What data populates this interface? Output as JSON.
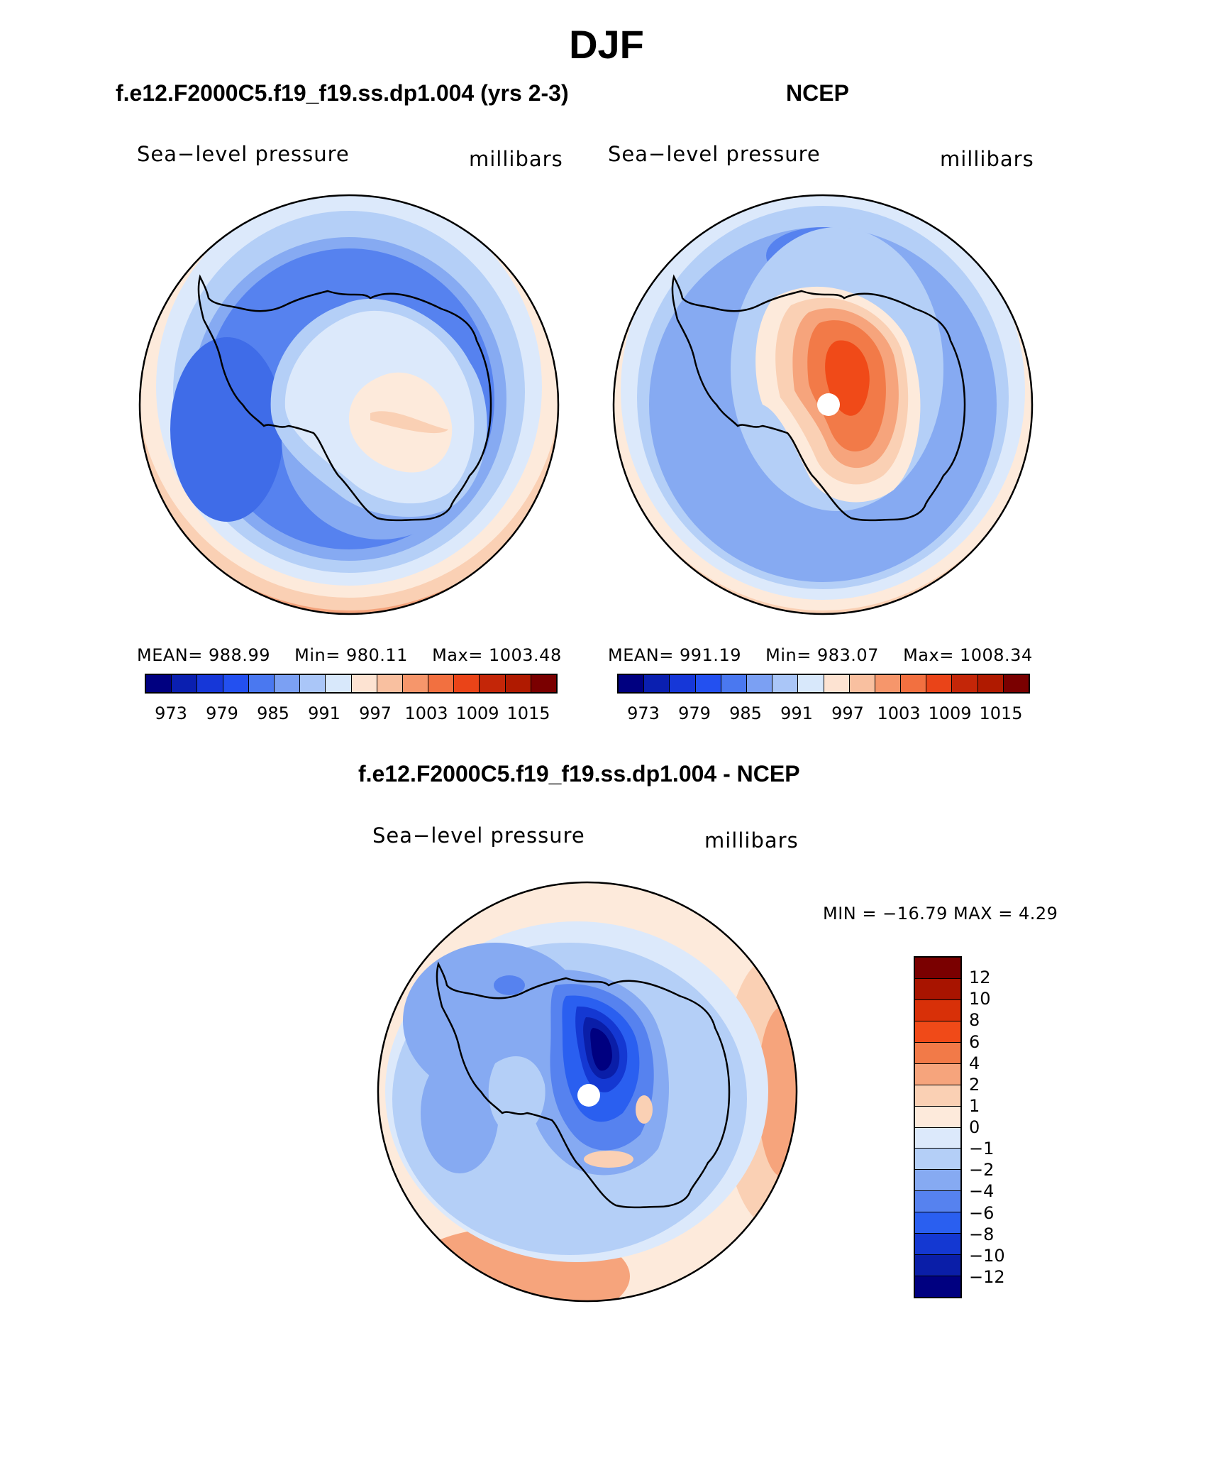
{
  "figure": {
    "title": "DJF",
    "field_label": "Sea−level pressure",
    "units_label": "millibars"
  },
  "panels": [
    {
      "title": "f.e12.F2000C5.f19_f19.ss.dp1.004 (yrs 2-3)",
      "stats": {
        "mean_label": "MEAN=",
        "mean": "988.99",
        "min_label": "Min=",
        "min": "980.11",
        "max_label": "Max=",
        "max": "1003.48"
      }
    },
    {
      "title": "NCEP",
      "stats": {
        "mean_label": "MEAN=",
        "mean": "991.19",
        "min_label": "Min=",
        "min": "983.07",
        "max_label": "Max=",
        "max": "1008.34"
      }
    }
  ],
  "difference_panel": {
    "title": "f.e12.F2000C5.f19_f19.ss.dp1.004 - NCEP",
    "minmax_text": "MIN = −16.79 MAX =    4.29"
  },
  "colorbar_abs": {
    "colors": [
      "#000080",
      "#0a1fb0",
      "#1637d8",
      "#2350f0",
      "#4a78f0",
      "#7ba0f3",
      "#aac6f8",
      "#d8e8fb",
      "#fde3d2",
      "#f9c0a0",
      "#f6966b",
      "#f27040",
      "#ea4418",
      "#c42608",
      "#b01a00",
      "#7a0000"
    ],
    "tick_labels": [
      "973",
      "979",
      "985",
      "991",
      "997",
      "1003",
      "1009",
      "1015"
    ]
  },
  "colorbar_diff": {
    "colors_top_to_bottom": [
      "#7a0000",
      "#a81400",
      "#d83008",
      "#f04a18",
      "#f27a48",
      "#f6a47c",
      "#fad0b4",
      "#fdeadb",
      "#dce9fb",
      "#b4cff7",
      "#86aaf2",
      "#5682ef",
      "#2a5ff0",
      "#1438d2",
      "#0a1ea8",
      "#000080"
    ],
    "labels_top_to_bottom": [
      "12",
      "10",
      "8",
      "6",
      "4",
      "2",
      "1",
      "0",
      "−1",
      "−2",
      "−4",
      "−6",
      "−8",
      "−10",
      "−12"
    ]
  },
  "chart_data": [
    {
      "type": "map",
      "projection": "polar stereographic, south pole",
      "title": "f.e12.F2000C5.f19_f19.ss.dp1.004 (yrs 2-3)",
      "variable": "Sea-level pressure",
      "units": "millibars",
      "mean": 988.99,
      "min": 980.11,
      "max": 1003.48,
      "contour_levels": [
        973,
        976,
        979,
        982,
        985,
        988,
        991,
        994,
        997,
        1000,
        1003,
        1006,
        1009,
        1012,
        1015
      ]
    },
    {
      "type": "map",
      "projection": "polar stereographic, south pole",
      "title": "NCEP",
      "variable": "Sea-level pressure",
      "units": "millibars",
      "mean": 991.19,
      "min": 983.07,
      "max": 1008.34,
      "contour_levels": [
        973,
        976,
        979,
        982,
        985,
        988,
        991,
        994,
        997,
        1000,
        1003,
        1006,
        1009,
        1012,
        1015
      ]
    },
    {
      "type": "map",
      "projection": "polar stereographic, south pole",
      "title": "f.e12.F2000C5.f19_f19.ss.dp1.004 - NCEP",
      "variable": "Sea-level pressure difference",
      "units": "millibars",
      "min": -16.79,
      "max": 4.29,
      "contour_levels": [
        -12,
        -10,
        -8,
        -6,
        -4,
        -2,
        -1,
        0,
        1,
        2,
        4,
        6,
        8,
        10,
        12
      ]
    }
  ]
}
